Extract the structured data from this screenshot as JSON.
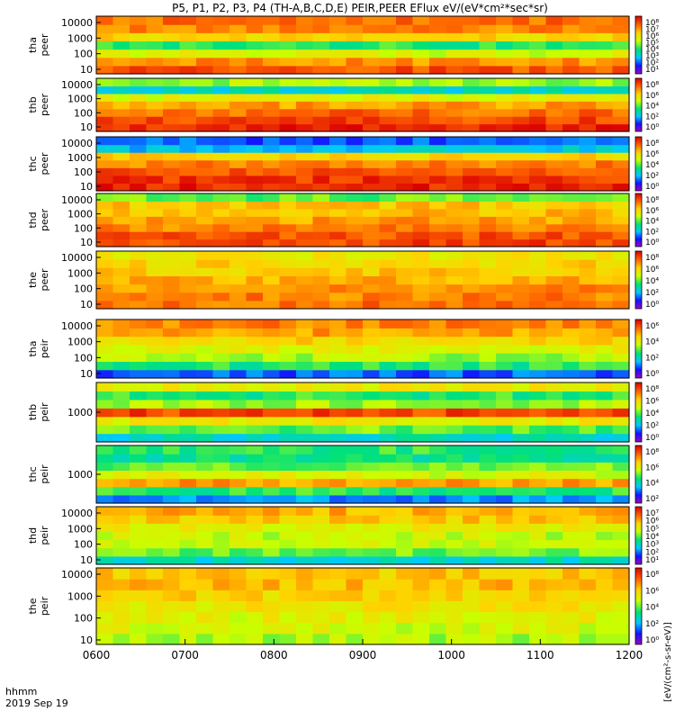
{
  "title": "P5, P1, P2, P3, P4 (TH-A,B,C,D,E) PEIR,PEER EFlux eV/(eV*cm²*sec*sr)",
  "footer": {
    "time_label": "hhmm",
    "date_label": "2019 Sep 19"
  },
  "colorbar_unit_label": "[eV/(cm²-s-sr-eV)]",
  "colors": {
    "scale": [
      "#a000c8",
      "#1414ff",
      "#00c8ff",
      "#00e178",
      "#c8ff00",
      "#ffd200",
      "#ff6400",
      "#dc0000"
    ],
    "gap": "#000000"
  },
  "chart_data": {
    "type": "heatmap",
    "x": {
      "label": "hhmm",
      "ticks": [
        "0600",
        "0700",
        "0800",
        "0900",
        "1000",
        "1100",
        "1200"
      ],
      "range": [
        "0600",
        "1200"
      ]
    },
    "panels": [
      {
        "name": "tha peer",
        "ylabel": [
          "tha",
          "peer"
        ],
        "yticks": [
          "10000",
          "1000",
          "100",
          "10"
        ],
        "ylim": [
          10,
          20000
        ],
        "cb_ticks": [
          "10⁸",
          "10⁷",
          "10⁶",
          "10⁵",
          "10⁴",
          "10³",
          "10²",
          "10¹"
        ]
      },
      {
        "name": "thb peer",
        "ylabel": [
          "thb",
          "peer"
        ],
        "yticks": [
          "10000",
          "1000",
          "100",
          "10"
        ],
        "ylim": [
          10,
          20000
        ],
        "cb_ticks": [
          "10⁸",
          "10⁶",
          "10⁴",
          "10²",
          "10⁰"
        ]
      },
      {
        "name": "thc peer",
        "ylabel": [
          "thc",
          "peer"
        ],
        "yticks": [
          "10000",
          "1000",
          "100",
          "10"
        ],
        "ylim": [
          10,
          20000
        ],
        "cb_ticks": [
          "10⁸",
          "10⁶",
          "10⁴",
          "10²",
          "10⁰"
        ]
      },
      {
        "name": "thd peer",
        "ylabel": [
          "thd",
          "peer"
        ],
        "yticks": [
          "10000",
          "1000",
          "100",
          "10"
        ],
        "ylim": [
          10,
          20000
        ],
        "cb_ticks": [
          "10⁸",
          "10⁶",
          "10⁴",
          "10²",
          "10⁰"
        ]
      },
      {
        "name": "the peer",
        "ylabel": [
          "the",
          "peer"
        ],
        "yticks": [
          "10000",
          "1000",
          "100",
          "10"
        ],
        "ylim": [
          10,
          20000
        ],
        "cb_ticks": [
          "10⁸",
          "10⁶",
          "10⁴",
          "10²",
          "10⁰"
        ]
      },
      {
        "name": "tha peir",
        "ylabel": [
          "tha",
          "peir"
        ],
        "yticks": [
          "10000",
          "1000",
          "100",
          "10"
        ],
        "ylim": [
          10,
          20000
        ],
        "cb_ticks": [
          "10⁶",
          "10⁴",
          "10²",
          "10⁰"
        ]
      },
      {
        "name": "thb peir",
        "ylabel": [
          "thb",
          "peir"
        ],
        "yticks": [
          "1000"
        ],
        "ylim": [
          10,
          20000
        ],
        "cb_ticks": [
          "10⁸",
          "10⁶",
          "10⁴",
          "10²",
          "10⁰"
        ]
      },
      {
        "name": "thc peir",
        "ylabel": [
          "thc",
          "peir"
        ],
        "yticks": [
          "1000"
        ],
        "ylim": [
          10,
          20000
        ],
        "cb_ticks": [
          "10⁸",
          "10⁶",
          "10⁴",
          "10²"
        ]
      },
      {
        "name": "thd peir",
        "ylabel": [
          "thd",
          "peir"
        ],
        "yticks": [
          "10000",
          "1000",
          "100",
          "10"
        ],
        "ylim": [
          10,
          20000
        ],
        "cb_ticks": [
          "10⁷",
          "10⁶",
          "10⁵",
          "10⁴",
          "10³",
          "10²",
          "10¹"
        ]
      },
      {
        "name": "the peir",
        "ylabel": [
          "the",
          "peir"
        ],
        "yticks": [
          "10000",
          "1000",
          "100",
          "10"
        ],
        "ylim": [
          10,
          20000
        ],
        "cb_ticks": [
          "10⁸",
          "10⁶",
          "10⁴",
          "10²",
          "10⁰"
        ]
      }
    ]
  }
}
